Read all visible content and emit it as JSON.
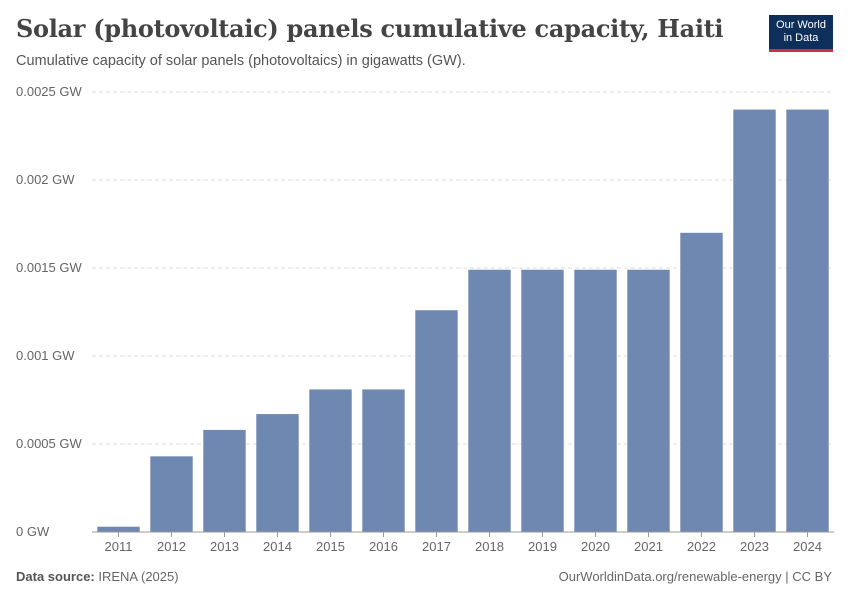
{
  "header": {
    "title": "Solar (photovoltaic) panels cumulative capacity, Haiti",
    "subtitle": "Cumulative capacity of solar panels (photovoltaics) in gigawatts (GW).",
    "logo_line1": "Our World",
    "logo_line2": "in Data"
  },
  "footer": {
    "source_label": "Data source:",
    "source_value": "IRENA (2025)",
    "url": "OurWorldinData.org/renewable-energy | CC BY"
  },
  "colors": {
    "bar": "#6f88b1",
    "grid": "#dddddd",
    "axis": "#999999"
  },
  "chart_data": {
    "type": "bar",
    "title": "Solar (photovoltaic) panels cumulative capacity, Haiti",
    "xlabel": "",
    "ylabel": "",
    "unit": "GW",
    "categories": [
      "2011",
      "2012",
      "2013",
      "2014",
      "2015",
      "2016",
      "2017",
      "2018",
      "2019",
      "2020",
      "2021",
      "2022",
      "2023",
      "2024"
    ],
    "values": [
      3e-05,
      0.00043,
      0.00058,
      0.00067,
      0.00081,
      0.00081,
      0.00126,
      0.00149,
      0.00149,
      0.00149,
      0.00149,
      0.0017,
      0.0024,
      0.0024
    ],
    "ylim": [
      0,
      0.0025
    ],
    "yticks": [
      0,
      0.0005,
      0.001,
      0.0015,
      0.002,
      0.0025
    ],
    "ytick_labels": [
      "0 GW",
      "0.0005 GW",
      "0.001 GW",
      "0.0015 GW",
      "0.002 GW",
      "0.0025 GW"
    ],
    "grid": true
  }
}
